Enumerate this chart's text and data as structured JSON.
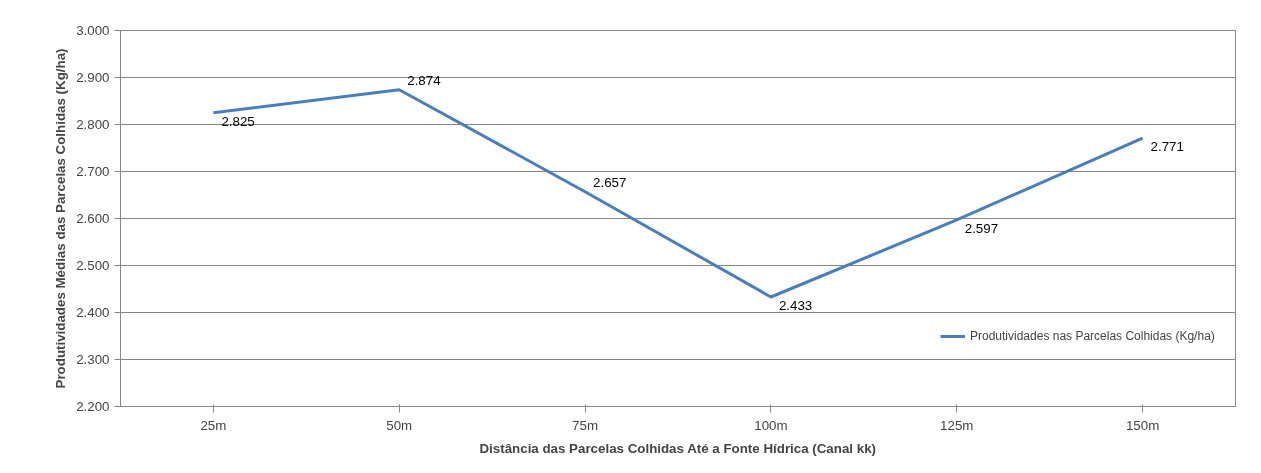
{
  "chart_data": {
    "type": "line",
    "ylabel": "Produtividades Médias das Parcelas Colhidas (Kg/ha)",
    "xlabel": "Distância das Parcelas Colhidas Até a Fonte Hídrica (Canal kk)",
    "categories": [
      "25m",
      "50m",
      "75m",
      "100m",
      "125m",
      "150m"
    ],
    "series": [
      {
        "name": "Produtividades nas Parcelas Colhidas (Kg/ha)",
        "color": "#4a7ebb",
        "values": [
          2825,
          2874,
          2657,
          2433,
          2597,
          2771
        ],
        "value_labels": [
          "2.825",
          "2.874",
          "2.657",
          "2.433",
          "2.597",
          "2.771"
        ]
      }
    ],
    "ylim": [
      2200,
      3000
    ],
    "yticks": [
      {
        "value": 2200,
        "label": "2.200"
      },
      {
        "value": 2300,
        "label": "2.300"
      },
      {
        "value": 2400,
        "label": "2.400"
      },
      {
        "value": 2500,
        "label": "2.500"
      },
      {
        "value": 2600,
        "label": "2.600"
      },
      {
        "value": 2700,
        "label": "2.700"
      },
      {
        "value": 2800,
        "label": "2.800"
      },
      {
        "value": 2900,
        "label": "2.900"
      },
      {
        "value": 3000,
        "label": "3.000"
      }
    ],
    "grid": "y",
    "legend": "right",
    "marker": "none",
    "line_style": "solid"
  }
}
